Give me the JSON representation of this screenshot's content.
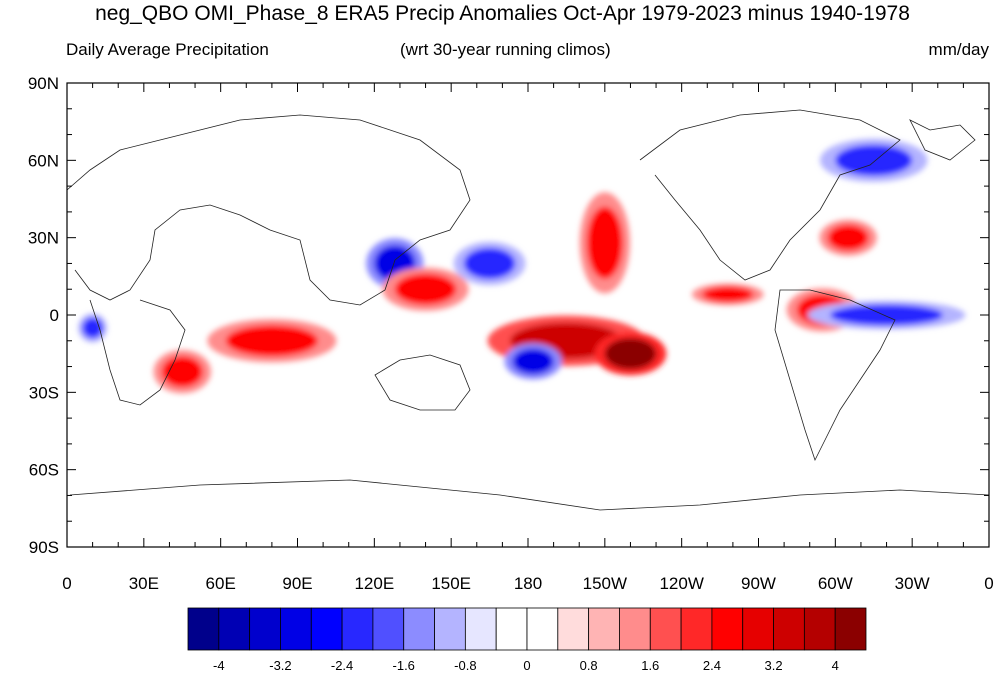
{
  "title": "neg_QBO OMI_Phase_8 ERA5 Precip Anomalies Oct-Apr 1979-2023 minus 1940-1978",
  "subtitle_left": "Daily Average Precipitation",
  "subtitle_center": "(wrt 30-year running climos)",
  "subtitle_right": "mm/day",
  "lat_labels": [
    "90N",
    "60N",
    "30N",
    "0",
    "30S",
    "60S",
    "90S"
  ],
  "lon_labels": [
    "0",
    "30E",
    "60E",
    "90E",
    "120E",
    "150E",
    "180",
    "150W",
    "120W",
    "90W",
    "60W",
    "30W",
    "0"
  ],
  "colorbar": {
    "labels": [
      "-4",
      "-3.2",
      "-2.4",
      "-1.6",
      "-0.8",
      "0",
      "0.8",
      "1.6",
      "2.4",
      "3.2",
      "4"
    ],
    "colors": [
      "#00008b",
      "#0000b4",
      "#0000cd",
      "#0000e6",
      "#0000ff",
      "#2828ff",
      "#5050ff",
      "#8c8cff",
      "#b4b4ff",
      "#e6e6ff",
      "#ffffff",
      "#ffffff",
      "#ffdcdc",
      "#ffb4b4",
      "#ff8c8c",
      "#ff5050",
      "#ff2828",
      "#ff0000",
      "#e60000",
      "#cd0000",
      "#b40000",
      "#8b0000"
    ]
  },
  "anomaly_blobs": [
    {
      "lon": 128,
      "lat": 20,
      "rx": 8,
      "ry": 7,
      "v": -3.2
    },
    {
      "lon": 165,
      "lat": 20,
      "rx": 10,
      "ry": 6,
      "v": -2.4
    },
    {
      "lon": 195,
      "lat": -10,
      "rx": 22,
      "ry": 7,
      "v": 3.2
    },
    {
      "lon": 220,
      "lat": -15,
      "rx": 10,
      "ry": 6,
      "v": 4
    },
    {
      "lon": 182,
      "lat": -18,
      "rx": 8,
      "ry": 5,
      "v": -3.2
    },
    {
      "lon": 210,
      "lat": 28,
      "rx": 7,
      "ry": 14,
      "v": 2.4
    },
    {
      "lon": 80,
      "lat": -10,
      "rx": 18,
      "ry": 6,
      "v": 2.4
    },
    {
      "lon": 45,
      "lat": -22,
      "rx": 8,
      "ry": 6,
      "v": 2.4
    },
    {
      "lon": 295,
      "lat": 2,
      "rx": 10,
      "ry": 6,
      "v": 2.4
    },
    {
      "lon": 320,
      "lat": 0,
      "rx": 22,
      "ry": 4,
      "v": -2.4
    },
    {
      "lon": 258,
      "lat": 8,
      "rx": 10,
      "ry": 3,
      "v": 2.4
    },
    {
      "lon": 315,
      "lat": 60,
      "rx": 15,
      "ry": 6,
      "v": -2.4
    },
    {
      "lon": 305,
      "lat": 30,
      "rx": 8,
      "ry": 5,
      "v": 2.4
    },
    {
      "lon": 140,
      "lat": 10,
      "rx": 12,
      "ry": 6,
      "v": 2.4
    },
    {
      "lon": 10,
      "lat": -5,
      "rx": 4,
      "ry": 4,
      "v": -2.4
    }
  ]
}
